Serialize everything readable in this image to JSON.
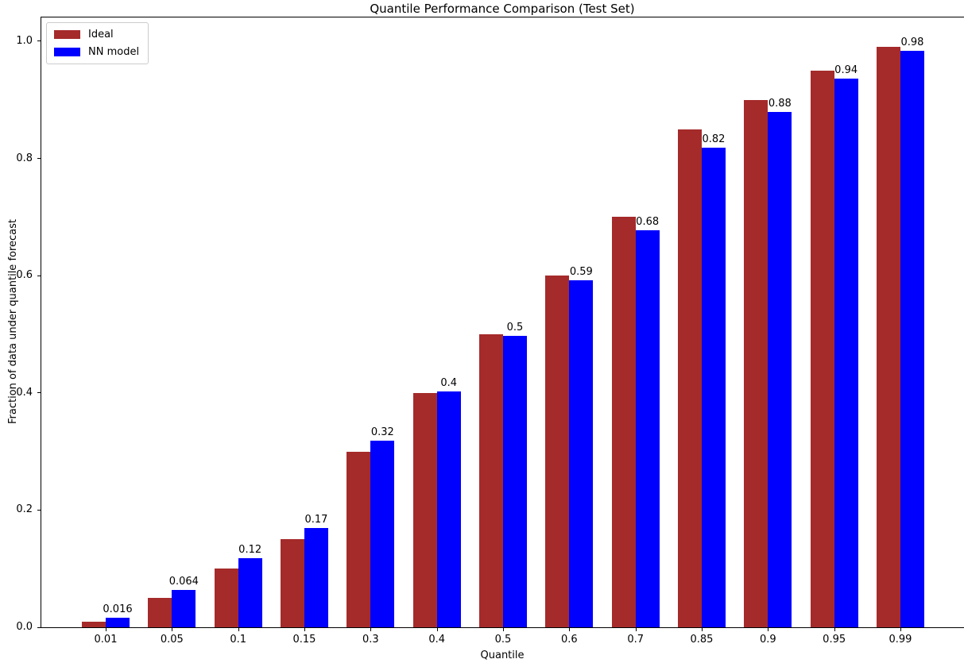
{
  "chart_data": {
    "type": "bar",
    "title": "Quantile Performance Comparison (Test Set)",
    "xlabel": "Quantile",
    "ylabel": "Fraction of data under quantile forecast",
    "categories": [
      "0.01",
      "0.05",
      "0.1",
      "0.15",
      "0.3",
      "0.4",
      "0.5",
      "0.6",
      "0.7",
      "0.85",
      "0.9",
      "0.95",
      "0.99"
    ],
    "series": [
      {
        "name": "Ideal",
        "color": "#A52A2A",
        "values": [
          0.01,
          0.05,
          0.1,
          0.15,
          0.3,
          0.4,
          0.5,
          0.6,
          0.7,
          0.85,
          0.9,
          0.95,
          0.99
        ]
      },
      {
        "name": "NN model",
        "color": "#0000FF",
        "values": [
          0.016,
          0.064,
          0.118,
          0.17,
          0.318,
          0.403,
          0.497,
          0.592,
          0.677,
          0.818,
          0.88,
          0.936,
          0.984
        ],
        "bar_labels": [
          "0.016",
          "0.064",
          "0.12",
          "0.17",
          "0.32",
          "0.4",
          "0.5",
          "0.59",
          "0.68",
          "0.82",
          "0.88",
          "0.94",
          "0.98"
        ]
      }
    ],
    "yticks": [
      "0.0",
      "0.2",
      "0.4",
      "0.6",
      "0.8",
      "1.0"
    ],
    "ylim": [
      0,
      1.042
    ],
    "legend_position": "upper left",
    "grid": false
  }
}
